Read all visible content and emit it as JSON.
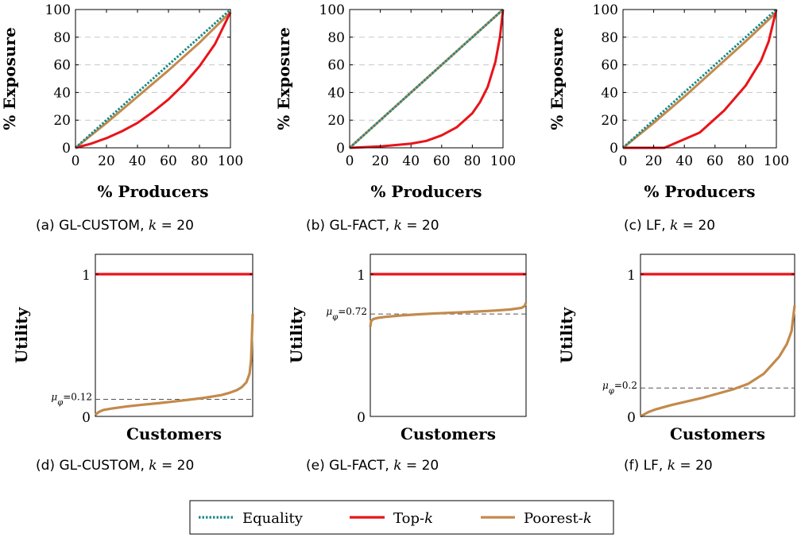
{
  "colors": {
    "equality": "#1a8a8a",
    "topk": "#e8141a",
    "poorestk": "#c38a4c",
    "grid": "#c8c8c8",
    "mean_line": "#555555"
  },
  "legend": {
    "items": [
      {
        "key": "equality",
        "label": "Equality",
        "style": "dotted"
      },
      {
        "key": "topk",
        "label": "Top-k",
        "style": "solid"
      },
      {
        "key": "poorestk",
        "label": "Poorest-k",
        "style": "solid"
      }
    ]
  },
  "chart_data": [
    {
      "id": "a",
      "type": "line",
      "caption": "(a) GL-CUSTOM, k = 20",
      "xlabel": "% Producers",
      "ylabel": "% Exposure",
      "xlim": [
        0,
        100
      ],
      "ylim": [
        0,
        100
      ],
      "xticks": [
        "0",
        "20",
        "40",
        "60",
        "80",
        "100"
      ],
      "yticks": [
        "0",
        "20",
        "40",
        "60",
        "80",
        "100"
      ],
      "grid": "horizontal-dashed",
      "series": [
        {
          "name": "Equality",
          "x": [
            0,
            100
          ],
          "y": [
            0,
            100
          ]
        },
        {
          "name": "Top-k",
          "x": [
            0,
            10,
            20,
            30,
            40,
            50,
            60,
            70,
            80,
            90,
            100
          ],
          "y": [
            0,
            3,
            7,
            12,
            18,
            26,
            35,
            46,
            59,
            75,
            98
          ]
        },
        {
          "name": "Poorest-k",
          "x": [
            0,
            20,
            40,
            60,
            80,
            100
          ],
          "y": [
            0,
            18,
            37,
            56,
            76,
            98
          ]
        }
      ]
    },
    {
      "id": "b",
      "type": "line",
      "caption": "(b) GL-FACT, k = 20",
      "xlabel": "% Producers",
      "ylabel": "% Exposure",
      "xlim": [
        0,
        100
      ],
      "ylim": [
        0,
        100
      ],
      "xticks": [
        "0",
        "20",
        "40",
        "60",
        "80",
        "100"
      ],
      "yticks": [
        "0",
        "20",
        "40",
        "60",
        "80",
        "100"
      ],
      "grid": "horizontal-dashed",
      "series": [
        {
          "name": "Equality",
          "x": [
            0,
            100
          ],
          "y": [
            0,
            100
          ]
        },
        {
          "name": "Top-k",
          "x": [
            0,
            20,
            40,
            50,
            60,
            70,
            80,
            85,
            90,
            95,
            98,
            100
          ],
          "y": [
            0,
            1,
            3,
            5,
            9,
            15,
            25,
            33,
            44,
            62,
            80,
            100
          ]
        },
        {
          "name": "Poorest-k",
          "x": [
            0,
            100
          ],
          "y": [
            0,
            100
          ]
        }
      ]
    },
    {
      "id": "c",
      "type": "line",
      "caption": "(c) LF, k = 20",
      "xlabel": "% Producers",
      "ylabel": "% Exposure",
      "xlim": [
        0,
        100
      ],
      "ylim": [
        0,
        100
      ],
      "xticks": [
        "0",
        "20",
        "40",
        "60",
        "80",
        "100"
      ],
      "yticks": [
        "0",
        "20",
        "40",
        "60",
        "80",
        "100"
      ],
      "grid": "horizontal-dashed",
      "series": [
        {
          "name": "Equality",
          "x": [
            0,
            100
          ],
          "y": [
            0,
            100
          ]
        },
        {
          "name": "Top-k",
          "x": [
            0,
            27,
            50,
            66,
            80,
            90,
            95,
            100
          ],
          "y": [
            0,
            0,
            11,
            27,
            45,
            63,
            77,
            100
          ]
        },
        {
          "name": "Poorest-k",
          "x": [
            0,
            20,
            40,
            60,
            80,
            100
          ],
          "y": [
            0,
            18,
            37,
            57,
            77,
            98
          ]
        }
      ]
    },
    {
      "id": "d",
      "type": "line",
      "caption": "(d) GL-CUSTOM, k = 20",
      "xlabel": "Customers",
      "ylabel": "Utility",
      "xlim": [
        0,
        1
      ],
      "ylim": [
        0,
        1
      ],
      "yticks": [
        "0",
        "1"
      ],
      "mean_label": "μφ=0.12",
      "mean_value": 0.12,
      "series": [
        {
          "name": "Top-k",
          "x": [
            0,
            1
          ],
          "y": [
            1,
            1
          ]
        },
        {
          "name": "Poorest-k",
          "x": [
            0,
            0.02,
            0.05,
            0.1,
            0.2,
            0.3,
            0.4,
            0.5,
            0.6,
            0.7,
            0.8,
            0.85,
            0.9,
            0.93,
            0.96,
            0.98,
            0.99,
            1
          ],
          "y": [
            0.01,
            0.03,
            0.045,
            0.055,
            0.07,
            0.082,
            0.093,
            0.105,
            0.118,
            0.132,
            0.15,
            0.165,
            0.185,
            0.205,
            0.24,
            0.3,
            0.4,
            0.72
          ]
        }
      ]
    },
    {
      "id": "e",
      "type": "line",
      "caption": "(e) GL-FACT, k = 20",
      "xlabel": "Customers",
      "ylabel": "Utility",
      "xlim": [
        0,
        1
      ],
      "ylim": [
        0,
        1
      ],
      "yticks": [
        "0",
        "1"
      ],
      "mean_label": "μφ=0.72",
      "mean_value": 0.72,
      "series": [
        {
          "name": "Top-k",
          "x": [
            0,
            1
          ],
          "y": [
            1,
            1
          ]
        },
        {
          "name": "Poorest-k",
          "x": [
            0,
            0.005,
            0.02,
            0.05,
            0.1,
            0.2,
            0.3,
            0.4,
            0.5,
            0.6,
            0.7,
            0.8,
            0.9,
            0.97,
            0.99,
            1
          ],
          "y": [
            0.63,
            0.67,
            0.685,
            0.693,
            0.7,
            0.71,
            0.717,
            0.723,
            0.728,
            0.733,
            0.738,
            0.744,
            0.752,
            0.763,
            0.775,
            0.8
          ]
        }
      ]
    },
    {
      "id": "f",
      "type": "line",
      "caption": "(f) LF, k = 20",
      "xlabel": "Customers",
      "ylabel": "Utility",
      "xlim": [
        0,
        1
      ],
      "ylim": [
        0,
        1
      ],
      "yticks": [
        "0",
        "1"
      ],
      "mean_label": "μφ=0.2",
      "mean_value": 0.2,
      "series": [
        {
          "name": "Top-k",
          "x": [
            0,
            1
          ],
          "y": [
            1,
            1
          ]
        },
        {
          "name": "Poorest-k",
          "x": [
            0,
            0.05,
            0.1,
            0.2,
            0.3,
            0.4,
            0.5,
            0.6,
            0.7,
            0.8,
            0.85,
            0.9,
            0.95,
            0.98,
            1
          ],
          "y": [
            0,
            0.03,
            0.05,
            0.08,
            0.105,
            0.13,
            0.16,
            0.19,
            0.23,
            0.3,
            0.36,
            0.42,
            0.51,
            0.6,
            0.78
          ]
        }
      ]
    }
  ]
}
